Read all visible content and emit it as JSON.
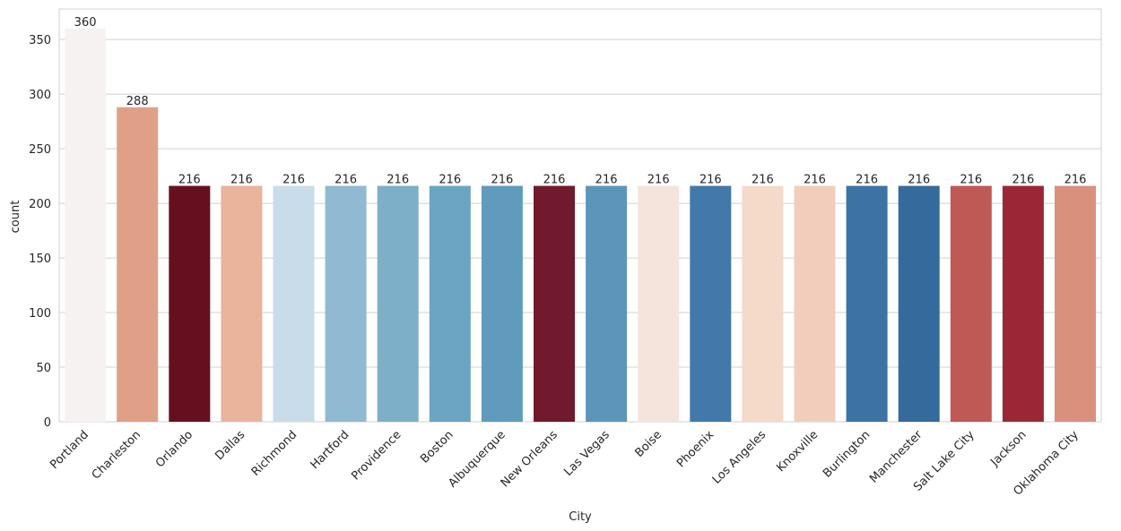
{
  "chart_data": {
    "type": "bar",
    "title": "",
    "xlabel": "City",
    "ylabel": "count",
    "ylim": [
      0,
      378
    ],
    "yticks": [
      0,
      50,
      100,
      150,
      200,
      250,
      300,
      350
    ],
    "grid": "horizontal",
    "categories": [
      "Portland",
      "Charleston",
      "Orlando",
      "Dallas",
      "Richmond",
      "Hartford",
      "Providence",
      "Boston",
      "Albuquerque",
      "New Orleans",
      "Las Vegas",
      "Boise",
      "Phoenix",
      "Los Angeles",
      "Knoxville",
      "Burlington",
      "Manchester",
      "Salt Lake City",
      "Jackson",
      "Oklahoma City"
    ],
    "values": [
      360,
      288,
      216,
      216,
      216,
      216,
      216,
      216,
      216,
      216,
      216,
      216,
      216,
      216,
      216,
      216,
      216,
      216,
      216,
      216
    ],
    "data_labels": [
      "360",
      "288",
      "216",
      "216",
      "216",
      "216",
      "216",
      "216",
      "216",
      "216",
      "216",
      "216",
      "216",
      "216",
      "216",
      "216",
      "216",
      "216",
      "216",
      "216"
    ],
    "colors": [
      "#f7f2f2",
      "#e0a088",
      "#66101f",
      "#e9b39c",
      "#c8dde9",
      "#90b9d2",
      "#7dafc9",
      "#6ba5c4",
      "#609bbd",
      "#711a2d",
      "#5c95ba",
      "#f4e4dc",
      "#4379aa",
      "#f5d9c9",
      "#f2cdbb",
      "#3c72a4",
      "#356a9c",
      "#bf5955",
      "#9b2736",
      "#d9917e"
    ]
  }
}
